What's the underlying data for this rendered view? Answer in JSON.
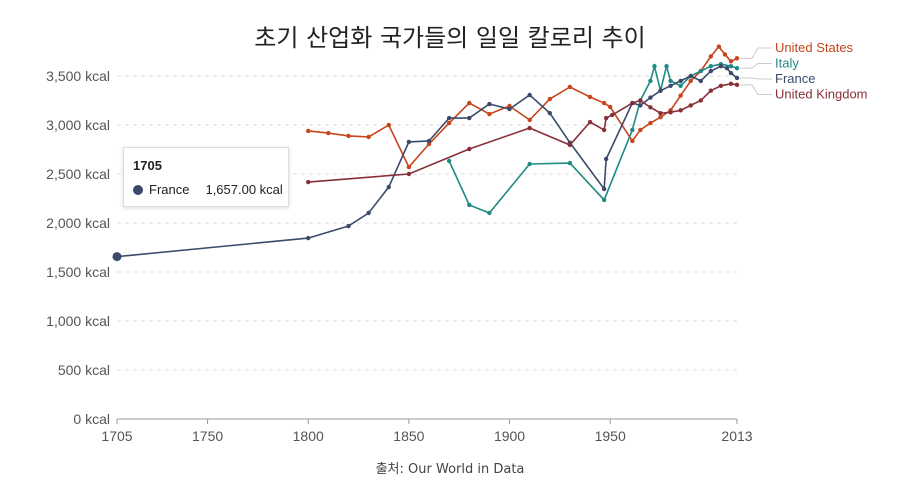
{
  "title": "초기 산업화 국가들의 일일 칼로리 추이",
  "source": "출처: Our World in Data",
  "tooltip": {
    "year": "1705",
    "series": "France",
    "value": "1,657.00 kcal",
    "color": "#3b4a6b"
  },
  "chart_data": {
    "type": "line",
    "title": "초기 산업화 국가들의 일일 칼로리 추이",
    "xlim": [
      1705,
      2013
    ],
    "ylim": [
      0,
      3800
    ],
    "x_ticks": [
      1705,
      1750,
      1800,
      1850,
      1900,
      1950,
      2013
    ],
    "y_ticks": [
      0,
      500,
      1000,
      1500,
      2000,
      2500,
      3000,
      3500
    ],
    "y_tick_labels": [
      "0 kcal",
      "500 kcal",
      "1,000 kcal",
      "1,500 kcal",
      "2,000 kcal",
      "2,500 kcal",
      "3,000 kcal",
      "3,500 kcal"
    ],
    "grid": "horizontal dashed",
    "legend": "right, line-end labels",
    "series": [
      {
        "name": "United States",
        "color": "#c6451c",
        "points": [
          [
            1800,
            2939
          ],
          [
            1810,
            2918
          ],
          [
            1820,
            2888
          ],
          [
            1830,
            2878
          ],
          [
            1840,
            3000
          ],
          [
            1850,
            2571
          ],
          [
            1860,
            2806
          ],
          [
            1870,
            3020
          ],
          [
            1880,
            3224
          ],
          [
            1890,
            3112
          ],
          [
            1900,
            3194
          ],
          [
            1910,
            3051
          ],
          [
            1920,
            3265
          ],
          [
            1930,
            3388
          ],
          [
            1940,
            3286
          ],
          [
            1947,
            3224
          ],
          [
            1950,
            3184
          ],
          [
            1961,
            2837
          ],
          [
            1965,
            2950
          ],
          [
            1970,
            3020
          ],
          [
            1975,
            3080
          ],
          [
            1980,
            3150
          ],
          [
            1985,
            3300
          ],
          [
            1990,
            3450
          ],
          [
            1995,
            3550
          ],
          [
            2000,
            3700
          ],
          [
            2004,
            3800
          ],
          [
            2007,
            3720
          ],
          [
            2010,
            3650
          ],
          [
            2013,
            3680
          ]
        ]
      },
      {
        "name": "Italy",
        "color": "#1f8a84",
        "points": [
          [
            1870,
            2633
          ],
          [
            1880,
            2184
          ],
          [
            1890,
            2102
          ],
          [
            1910,
            2602
          ],
          [
            1930,
            2612
          ],
          [
            1947,
            2235
          ],
          [
            1961,
            2950
          ],
          [
            1965,
            3250
          ],
          [
            1970,
            3450
          ],
          [
            1972,
            3600
          ],
          [
            1975,
            3350
          ],
          [
            1978,
            3600
          ],
          [
            1980,
            3450
          ],
          [
            1985,
            3400
          ],
          [
            1990,
            3500
          ],
          [
            1995,
            3550
          ],
          [
            2000,
            3600
          ],
          [
            2005,
            3620
          ],
          [
            2010,
            3600
          ],
          [
            2013,
            3580
          ]
        ]
      },
      {
        "name": "France",
        "color": "#3b4a6b",
        "points": [
          [
            1705,
            1657
          ],
          [
            1800,
            1846
          ],
          [
            1820,
            1969
          ],
          [
            1830,
            2102
          ],
          [
            1840,
            2367
          ],
          [
            1850,
            2827
          ],
          [
            1860,
            2837
          ],
          [
            1870,
            3071
          ],
          [
            1880,
            3071
          ],
          [
            1890,
            3214
          ],
          [
            1900,
            3163
          ],
          [
            1910,
            3306
          ],
          [
            1920,
            3122
          ],
          [
            1930,
            2820
          ],
          [
            1947,
            2347
          ],
          [
            1948,
            2653
          ],
          [
            1961,
            3224
          ],
          [
            1965,
            3200
          ],
          [
            1970,
            3280
          ],
          [
            1975,
            3350
          ],
          [
            1980,
            3400
          ],
          [
            1985,
            3450
          ],
          [
            1990,
            3500
          ],
          [
            1995,
            3450
          ],
          [
            2000,
            3550
          ],
          [
            2005,
            3600
          ],
          [
            2008,
            3580
          ],
          [
            2010,
            3530
          ],
          [
            2013,
            3480
          ]
        ]
      },
      {
        "name": "United Kingdom",
        "color": "#883039",
        "points": [
          [
            1800,
            2418
          ],
          [
            1850,
            2500
          ],
          [
            1880,
            2755
          ],
          [
            1910,
            2969
          ],
          [
            1930,
            2796
          ],
          [
            1940,
            3030
          ],
          [
            1947,
            2949
          ],
          [
            1948,
            3071
          ],
          [
            1951,
            3102
          ],
          [
            1961,
            3224
          ],
          [
            1965,
            3250
          ],
          [
            1970,
            3180
          ],
          [
            1975,
            3120
          ],
          [
            1980,
            3130
          ],
          [
            1985,
            3150
          ],
          [
            1990,
            3200
          ],
          [
            1995,
            3250
          ],
          [
            2000,
            3350
          ],
          [
            2005,
            3400
          ],
          [
            2010,
            3420
          ],
          [
            2013,
            3410
          ]
        ]
      }
    ]
  }
}
